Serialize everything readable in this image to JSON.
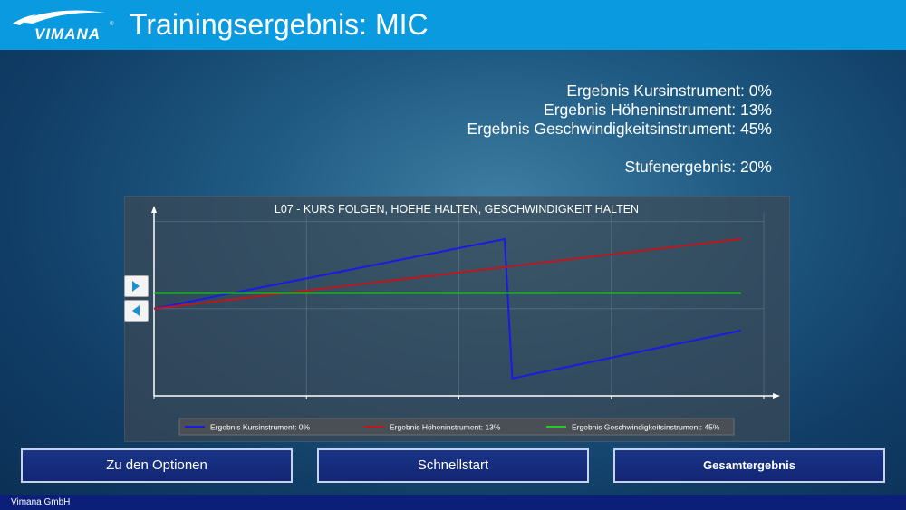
{
  "header": {
    "logo_text": "VIMANA",
    "logo_trademark": "®",
    "title": "Trainingsergebnis: MIC"
  },
  "results": {
    "kurs": "Ergebnis Kursinstrument: 0%",
    "hoehe": "Ergebnis Höheninstrument: 13%",
    "geschwindigkeit": "Ergebnis Geschwindigkeitsinstrument: 45%",
    "stufe": "Stufenergebnis: 20%"
  },
  "chart_data": {
    "type": "line",
    "title": "L07 - KURS FOLGEN, HOEHE HALTEN, GESCHWINDIGKEIT HALTEN",
    "xlabel": "",
    "ylabel": "",
    "grid": true,
    "legend_position": "bottom",
    "x": [
      0,
      1,
      2,
      3,
      4
    ],
    "series": [
      {
        "name": "Ergebnis Kursinstrument: 0%",
        "color": "#1a1ae6",
        "points": [
          [
            0,
            1.0
          ],
          [
            2.3,
            1.8
          ],
          [
            2.35,
            0.2
          ],
          [
            3.85,
            0.75
          ]
        ]
      },
      {
        "name": "Ergebnis Höheninstrument: 13%",
        "color": "#c0151b",
        "points": [
          [
            0,
            1.0
          ],
          [
            3.85,
            1.8
          ]
        ]
      },
      {
        "name": "Ergebnis Geschwindigkeitsinstrument: 45%",
        "color": "#1fcc1f",
        "points": [
          [
            0,
            1.18
          ],
          [
            3.85,
            1.18
          ]
        ]
      }
    ],
    "xlim": [
      0,
      4
    ],
    "ylim": [
      0,
      2.1
    ]
  },
  "side_buttons": {
    "next_icon": "triangle-right-icon",
    "prev_icon": "triangle-left-icon"
  },
  "buttons": {
    "options": "Zu den Optionen",
    "quickstart": "Schnellstart",
    "overall": "Gesamtergebnis"
  },
  "footer": {
    "company": "Vimana GmbH"
  }
}
